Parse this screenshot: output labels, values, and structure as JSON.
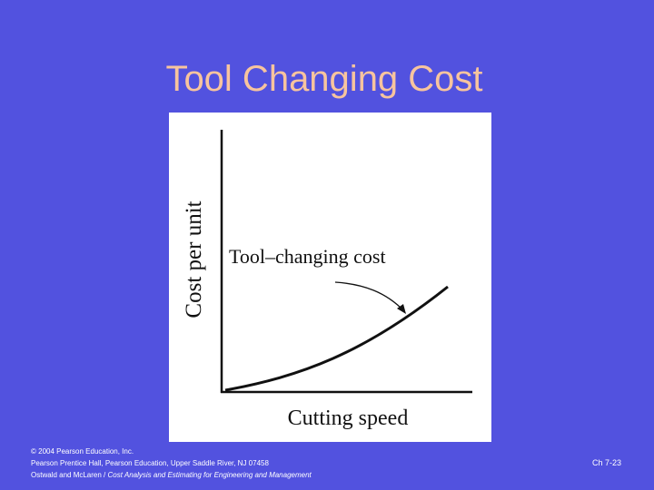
{
  "slide": {
    "title": "Tool Changing Cost",
    "figure": {
      "y_axis_label": "Cost per unit",
      "x_axis_label": "Cutting speed",
      "annotation": "Tool–changing cost"
    },
    "footer": {
      "lines": [
        "© 2004 Pearson Education, Inc.",
        "Pearson Prentice Hall, Pearson Education, Upper Saddle River, NJ 07458"
      ],
      "authors": "Ostwald and McLaren / ",
      "book_title": "Cost Analysis and Estimating for Engineering and Management"
    },
    "page_number": "Ch 7-23"
  }
}
